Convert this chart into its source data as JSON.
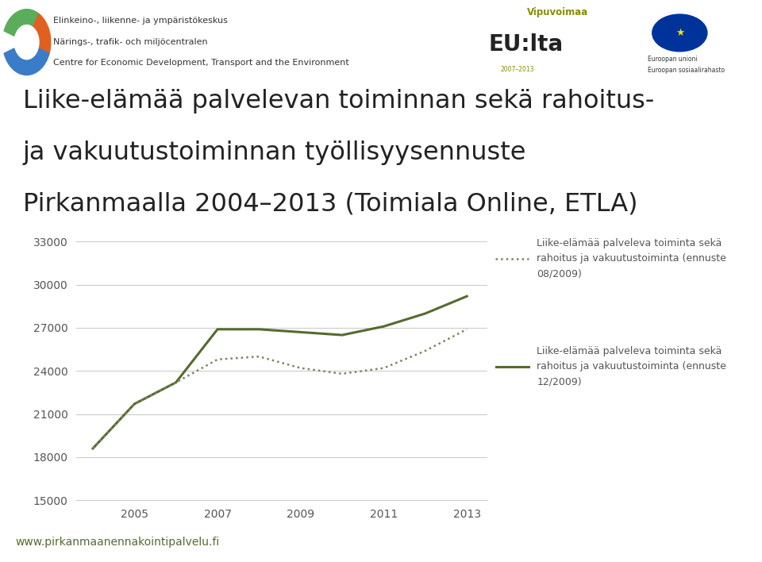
{
  "title_line1": "Liike-elämää palvelevan toiminnan sekä rahoitus-",
  "title_line2": "ja vakuutustoiminnan työllisyysennuste",
  "title_line3": "Pirkanmaalla 2004–2013 (Toimiala Online, ETLA)",
  "header_line1": "Elinkeino-, liikenne- ja ympäristökeskus",
  "header_line2": "Närings-, trafik- och miljöcentralen",
  "header_line3": "Centre for Economic Development, Transport and the Environment",
  "footer": "www.pirkanmaanennakointipalvelu.fi",
  "series_solid_label": "Liike-elämää palveleva toiminta sekä\nrahoitus ja vakuutustoiminta (ennuste\n12/2009)",
  "series_dotted_label": "Liike-elämää palveleva toiminta sekä\nrahoitus ja vakuutustoiminta (ennuste\n08/2009)",
  "color_solid": "#556B2F",
  "color_dotted": "#808060",
  "years_solid": [
    2004,
    2005,
    2006,
    2007,
    2008,
    2009,
    2010,
    2011,
    2012,
    2013
  ],
  "values_solid": [
    18600,
    21700,
    23200,
    26900,
    26900,
    26700,
    26500,
    27100,
    28000,
    29200
  ],
  "years_dotted": [
    2004,
    2005,
    2006,
    2007,
    2008,
    2009,
    2010,
    2011,
    2012,
    2013
  ],
  "values_dotted": [
    18600,
    21700,
    23200,
    24800,
    25000,
    24200,
    23800,
    24200,
    25400,
    26900
  ],
  "ylim": [
    15000,
    33000
  ],
  "yticks": [
    15000,
    18000,
    21000,
    24000,
    27000,
    30000,
    33000
  ],
  "xticks": [
    2005,
    2007,
    2009,
    2011,
    2013
  ],
  "background_color": "#ffffff",
  "grid_color": "#cccccc",
  "text_color": "#555555",
  "eu_text1": "Vipuvoimaa",
  "eu_text2": "EU:lta",
  "eu_text3": "2007–2013",
  "eu_text4": "Euroopan unioni",
  "eu_text5": "Euroopan sosiaalirahasto"
}
